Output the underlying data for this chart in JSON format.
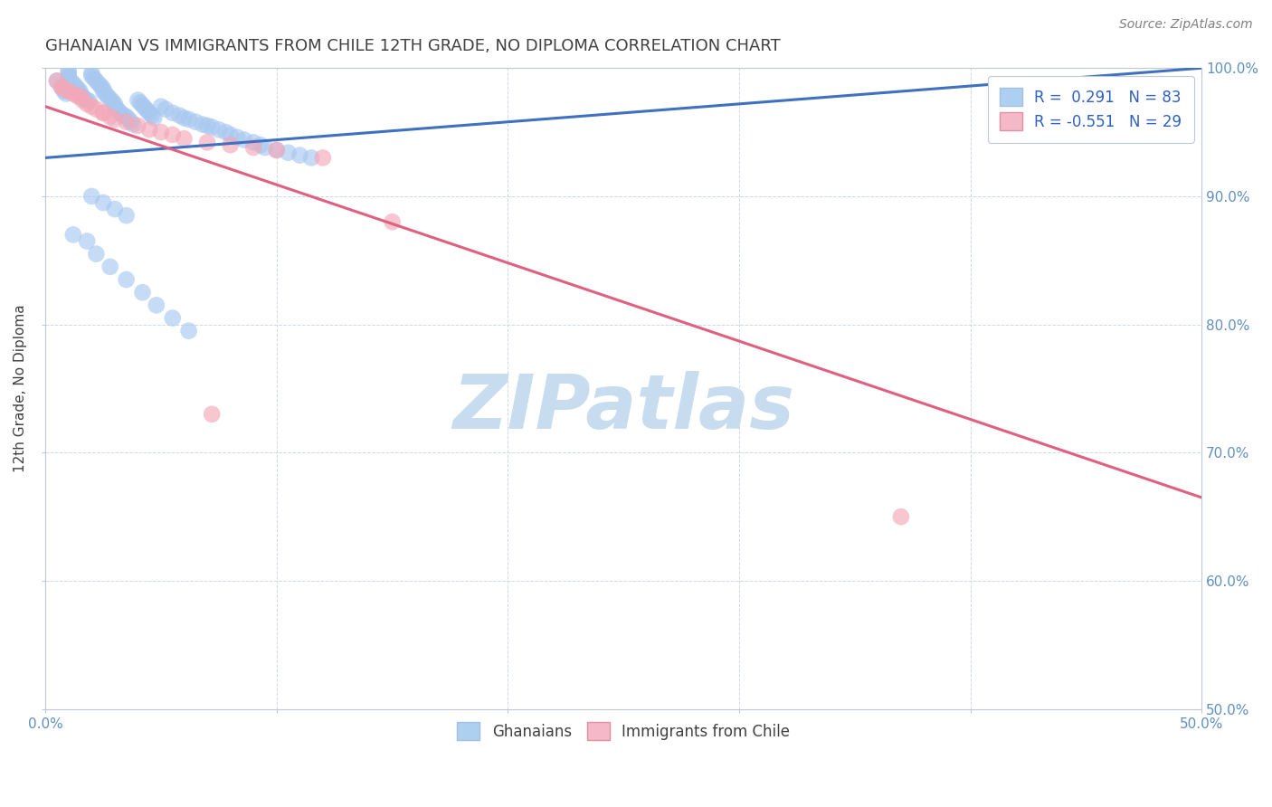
{
  "title": "GHANAIAN VS IMMIGRANTS FROM CHILE 12TH GRADE, NO DIPLOMA CORRELATION CHART",
  "source_text": "Source: ZipAtlas.com",
  "ylabel": "12th Grade, No Diploma",
  "xlim": [
    0.0,
    0.5
  ],
  "ylim": [
    0.5,
    1.0
  ],
  "xticks": [
    0.0,
    0.1,
    0.2,
    0.3,
    0.4,
    0.5
  ],
  "xticklabels": [
    "0.0%",
    "",
    "",
    "",
    "",
    "50.0%"
  ],
  "yticks": [
    0.5,
    0.6,
    0.7,
    0.8,
    0.9,
    1.0
  ],
  "yticklabels_right": [
    "50.0%",
    "60.0%",
    "70.0%",
    "80.0%",
    "90.0%",
    "100.0%"
  ],
  "blue_R": 0.291,
  "blue_N": 83,
  "pink_R": -0.551,
  "pink_N": 29,
  "blue_color": "#A8C8F0",
  "pink_color": "#F4A8B8",
  "blue_line_color": "#4070C0",
  "pink_line_color": "#E06080",
  "blue_line_x": [
    0.0,
    0.5
  ],
  "blue_line_y": [
    0.93,
    1.0
  ],
  "pink_line_x": [
    0.0,
    0.5
  ],
  "pink_line_y": [
    0.97,
    0.665
  ],
  "blue_x": [
    0.005,
    0.007,
    0.008,
    0.009,
    0.01,
    0.01,
    0.01,
    0.01,
    0.011,
    0.012,
    0.013,
    0.014,
    0.015,
    0.015,
    0.016,
    0.017,
    0.018,
    0.019,
    0.02,
    0.02,
    0.021,
    0.022,
    0.023,
    0.024,
    0.025,
    0.025,
    0.026,
    0.027,
    0.028,
    0.029,
    0.03,
    0.03,
    0.031,
    0.032,
    0.033,
    0.034,
    0.035,
    0.036,
    0.037,
    0.038,
    0.04,
    0.041,
    0.042,
    0.043,
    0.044,
    0.045,
    0.046,
    0.047,
    0.05,
    0.052,
    0.055,
    0.058,
    0.06,
    0.062,
    0.065,
    0.068,
    0.07,
    0.072,
    0.075,
    0.078,
    0.08,
    0.083,
    0.086,
    0.09,
    0.093,
    0.095,
    0.1,
    0.105,
    0.11,
    0.115,
    0.02,
    0.025,
    0.03,
    0.035,
    0.012,
    0.018,
    0.022,
    0.028,
    0.035,
    0.042,
    0.048,
    0.055,
    0.062
  ],
  "blue_y": [
    0.99,
    0.985,
    0.982,
    0.98,
    0.998,
    0.996,
    0.994,
    0.992,
    0.99,
    0.988,
    0.986,
    0.984,
    0.982,
    0.98,
    0.978,
    0.976,
    0.975,
    0.974,
    0.996,
    0.994,
    0.992,
    0.99,
    0.988,
    0.986,
    0.984,
    0.982,
    0.98,
    0.978,
    0.976,
    0.974,
    0.972,
    0.97,
    0.968,
    0.966,
    0.964,
    0.963,
    0.962,
    0.96,
    0.958,
    0.956,
    0.975,
    0.973,
    0.971,
    0.969,
    0.967,
    0.965,
    0.963,
    0.961,
    0.97,
    0.968,
    0.965,
    0.963,
    0.961,
    0.96,
    0.958,
    0.956,
    0.955,
    0.954,
    0.952,
    0.95,
    0.948,
    0.946,
    0.944,
    0.942,
    0.94,
    0.938,
    0.936,
    0.934,
    0.932,
    0.93,
    0.9,
    0.895,
    0.89,
    0.885,
    0.87,
    0.865,
    0.855,
    0.845,
    0.835,
    0.825,
    0.815,
    0.805,
    0.795
  ],
  "pink_x": [
    0.005,
    0.007,
    0.008,
    0.01,
    0.012,
    0.014,
    0.016,
    0.018,
    0.02,
    0.022,
    0.025,
    0.028,
    0.03,
    0.035,
    0.04,
    0.045,
    0.05,
    0.055,
    0.06,
    0.07,
    0.08,
    0.09,
    0.1,
    0.12,
    0.015,
    0.025,
    0.072,
    0.15,
    0.37
  ],
  "pink_y": [
    0.99,
    0.985,
    0.984,
    0.982,
    0.98,
    0.978,
    0.975,
    0.972,
    0.97,
    0.968,
    0.965,
    0.962,
    0.96,
    0.958,
    0.955,
    0.952,
    0.95,
    0.948,
    0.945,
    0.942,
    0.94,
    0.938,
    0.936,
    0.93,
    0.978,
    0.965,
    0.73,
    0.88,
    0.65
  ],
  "watermark": "ZIPatlas",
  "watermark_color": "#C8DCF0",
  "legend_blue_label": "R =  0.291   N = 83",
  "legend_pink_label": "R = -0.551   N = 29",
  "legend_blue_box": "#AED0F0",
  "legend_pink_box": "#F4B8C8",
  "title_color": "#404040",
  "axis_label_color": "#404040",
  "tick_color": "#6090C0",
  "grid_color": "#D0D8E8",
  "background_color": "#FFFFFF"
}
